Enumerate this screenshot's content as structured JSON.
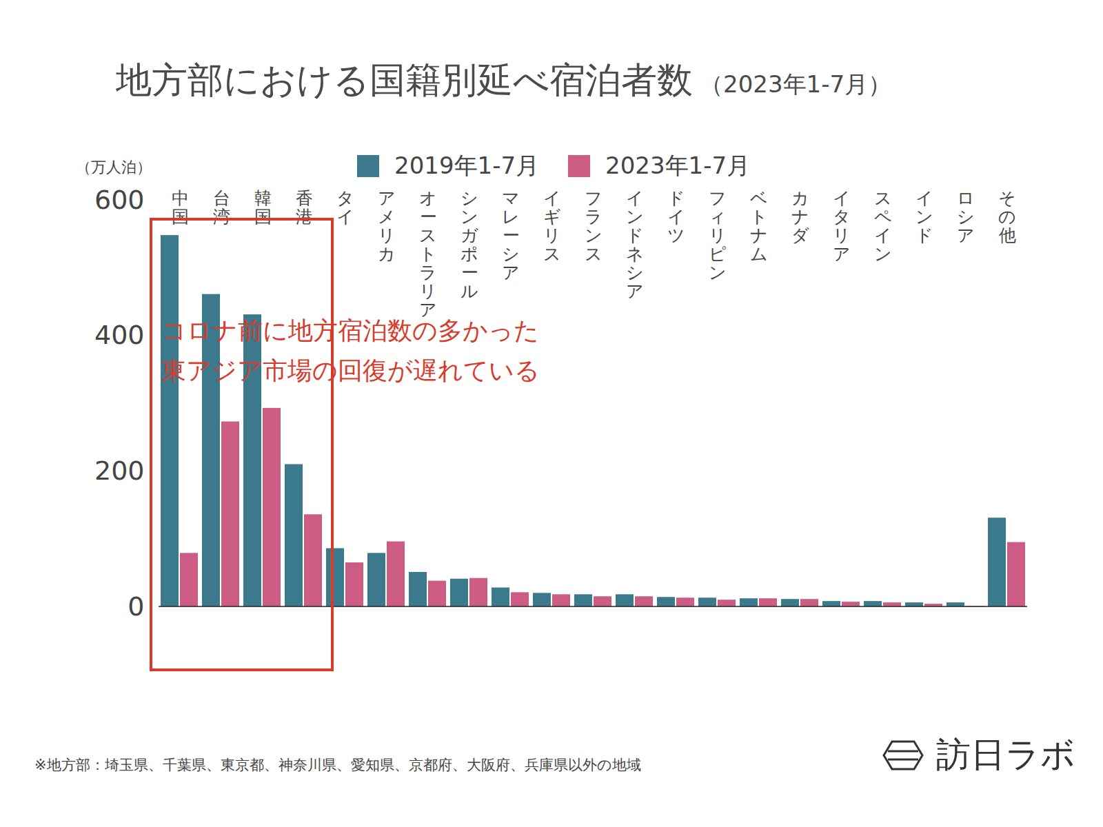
{
  "chart_data": {
    "type": "bar",
    "title": "地方部における国籍別延べ宿泊者数",
    "subtitle": "（2023年1-7月）",
    "ylabel": "（万人泊）",
    "categories": [
      "中国",
      "台湾",
      "韓国",
      "香港",
      "タイ",
      "アメリカ",
      "オーストラリア",
      "シンガポール",
      "マレーシア",
      "イギリス",
      "フランス",
      "インドネシア",
      "ドイツ",
      "フィリピン",
      "ベトナム",
      "カナダ",
      "イタリア",
      "スペイン",
      "インド",
      "ロシア",
      "その他"
    ],
    "series": [
      {
        "name": "2019年1-7月",
        "color": "#3b7a8d",
        "values": [
          548,
          461,
          431,
          210,
          86,
          79,
          51,
          41,
          28,
          20,
          18,
          18,
          14,
          13,
          12,
          11,
          8,
          8,
          6,
          6,
          131
        ]
      },
      {
        "name": "2023年1-7月",
        "color": "#cc5c83",
        "values": [
          79,
          273,
          293,
          136,
          65,
          96,
          38,
          42,
          21,
          18,
          15,
          15,
          13,
          10,
          12,
          11,
          7,
          6,
          4,
          1,
          95
        ]
      }
    ],
    "ylim": [
      0,
      600
    ],
    "yticks": [
      0,
      200,
      400,
      600
    ],
    "grid": false,
    "legend": "top",
    "annotations": [
      {
        "lines": [
          "コロナ前に地方宿泊数の多かった",
          "東アジア市場の回復が遅れている"
        ],
        "categories": [
          "中国",
          "台湾",
          "韓国",
          "香港"
        ],
        "color": "#d63b2b"
      }
    ],
    "note": "※地方部：埼玉県、千葉県、東京都、神奈川県、愛知県、京都府、大阪府、兵庫県以外の地域",
    "source": "訪日ラボ"
  }
}
